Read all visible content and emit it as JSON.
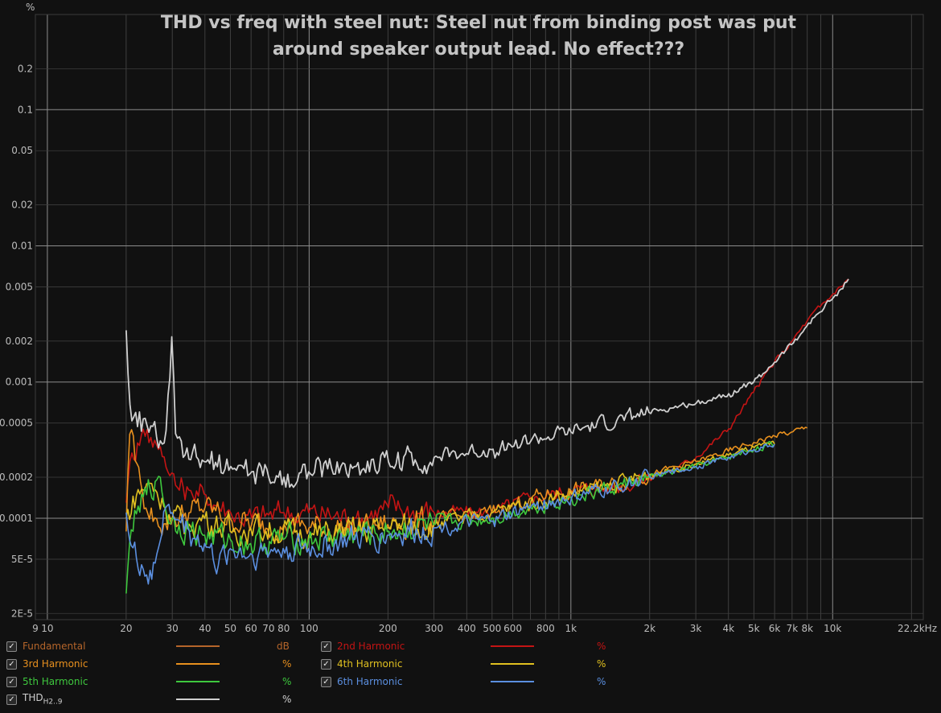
{
  "chart_data": {
    "type": "line",
    "title": "THD vs freq with steel nut: Steel nut from binding post was put around speaker output lead. No effect???",
    "title_lines": [
      "THD vs freq with steel nut: Steel nut from binding post was put",
      "around speaker output lead. No effect???"
    ],
    "yunit": "%",
    "xscale": "log",
    "yscale": "log",
    "xlim": [
      9,
      22200
    ],
    "ylim": [
      1.8e-05,
      0.5
    ],
    "grid": true,
    "x_ticks": [
      {
        "v": 9,
        "l": "9"
      },
      {
        "v": 10,
        "l": "10"
      },
      {
        "v": 20,
        "l": "20"
      },
      {
        "v": 30,
        "l": "30"
      },
      {
        "v": 40,
        "l": "40"
      },
      {
        "v": 50,
        "l": "50"
      },
      {
        "v": 60,
        "l": "60"
      },
      {
        "v": 70,
        "l": "70"
      },
      {
        "v": 80,
        "l": "80"
      },
      {
        "v": 100,
        "l": "100"
      },
      {
        "v": 200,
        "l": "200"
      },
      {
        "v": 300,
        "l": "300"
      },
      {
        "v": 400,
        "l": "400"
      },
      {
        "v": 500,
        "l": "500"
      },
      {
        "v": 600,
        "l": "600"
      },
      {
        "v": 800,
        "l": "800"
      },
      {
        "v": 1000,
        "l": "1k"
      },
      {
        "v": 2000,
        "l": "2k"
      },
      {
        "v": 3000,
        "l": "3k"
      },
      {
        "v": 4000,
        "l": "4k"
      },
      {
        "v": 5000,
        "l": "5k"
      },
      {
        "v": 6000,
        "l": "6k"
      },
      {
        "v": 7000,
        "l": "7k"
      },
      {
        "v": 8000,
        "l": "8k"
      },
      {
        "v": 10000,
        "l": "10k"
      },
      {
        "v": 22200,
        "l": "22.2kHz"
      }
    ],
    "y_ticks": [
      {
        "v": 0.2,
        "l": "0.2"
      },
      {
        "v": 0.1,
        "l": "0.1"
      },
      {
        "v": 0.05,
        "l": "0.05"
      },
      {
        "v": 0.02,
        "l": "0.02"
      },
      {
        "v": 0.01,
        "l": "0.01"
      },
      {
        "v": 0.005,
        "l": "0.005"
      },
      {
        "v": 0.002,
        "l": "0.002"
      },
      {
        "v": 0.001,
        "l": "0.001"
      },
      {
        "v": 0.0005,
        "l": "0.0005"
      },
      {
        "v": 0.0002,
        "l": "0.0002"
      },
      {
        "v": 0.0001,
        "l": "0.0001"
      },
      {
        "v": 5e-05,
        "l": "5E-5"
      },
      {
        "v": 2e-05,
        "l": "2E-5"
      }
    ],
    "series": [
      {
        "name": "Fundamental",
        "color": "#b5652a",
        "unit": "dB",
        "visible_on_plot": false,
        "x": [],
        "y": []
      },
      {
        "name": "2nd Harmonic",
        "color": "#c41414",
        "unit": "%",
        "x": [
          20,
          21,
          22,
          23,
          24,
          26,
          28,
          29.5,
          30,
          31,
          35,
          40,
          50,
          60,
          80,
          100,
          150,
          200,
          300,
          500,
          700,
          1000,
          1500,
          2000,
          2500,
          3000,
          4000,
          5000,
          6000,
          7000,
          8000,
          9000,
          10000,
          11500
        ],
        "y": [
          0.00013,
          0.0003,
          0.00035,
          0.00042,
          0.00045,
          0.00035,
          0.00028,
          0.0002,
          0.00022,
          0.00017,
          0.00016,
          0.00015,
          0.00011,
          0.0001,
          0.00011,
          0.00011,
          0.0001,
          0.00012,
          0.00011,
          0.00011,
          0.00014,
          0.00016,
          0.00017,
          0.0002,
          0.00023,
          0.00028,
          0.00045,
          0.00085,
          0.0014,
          0.002,
          0.0028,
          0.0036,
          0.0044,
          0.0057
        ]
      },
      {
        "name": "3rd Harmonic",
        "color": "#e8901e",
        "unit": "%",
        "x": [
          20,
          20.5,
          21,
          22,
          23,
          24,
          26,
          28,
          30,
          35,
          40,
          50,
          60,
          80,
          100,
          150,
          200,
          300,
          500,
          700,
          1000,
          1500,
          2000,
          3000,
          4000,
          5000,
          6000,
          7000,
          8000
        ],
        "y": [
          8e-05,
          0.0004,
          0.00045,
          0.00025,
          0.00016,
          0.00011,
          0.0001,
          9e-05,
          0.0001,
          0.00011,
          0.00012,
          0.0001,
          9e-05,
          9e-05,
          8.5e-05,
          8.5e-05,
          9e-05,
          9.5e-05,
          0.00011,
          0.00014,
          0.00016,
          0.00018,
          0.00021,
          0.00026,
          0.00031,
          0.00036,
          0.0004,
          0.00043,
          0.00046
        ]
      },
      {
        "name": "4th Harmonic",
        "color": "#e0c020",
        "unit": "%",
        "x": [
          20,
          22,
          24,
          26,
          28,
          30,
          35,
          40,
          50,
          60,
          80,
          100,
          150,
          200,
          300,
          500,
          700,
          1000,
          1500,
          2000,
          3000,
          4000,
          5000,
          6000
        ],
        "y": [
          0.0001,
          0.00015,
          0.00018,
          0.00016,
          0.00012,
          0.0001,
          9e-05,
          0.0001,
          8e-05,
          8.5e-05,
          8e-05,
          7.5e-05,
          8e-05,
          8.5e-05,
          9e-05,
          0.00011,
          0.00013,
          0.00015,
          0.00018,
          0.00021,
          0.00025,
          0.00029,
          0.00033,
          0.00035
        ]
      },
      {
        "name": "5th Harmonic",
        "color": "#3ec83e",
        "unit": "%",
        "x": [
          20,
          21,
          22,
          24,
          26,
          27,
          28,
          30,
          35,
          40,
          50,
          60,
          80,
          100,
          150,
          200,
          300,
          500,
          700,
          1000,
          1500,
          2000,
          3000,
          4000,
          5000,
          6000
        ],
        "y": [
          2.8e-05,
          9e-05,
          0.00011,
          0.00015,
          0.00019,
          0.0002,
          0.00012,
          0.0001,
          8e-05,
          7.5e-05,
          7e-05,
          6.5e-05,
          7e-05,
          7e-05,
          7.5e-05,
          8e-05,
          9e-05,
          0.0001,
          0.00012,
          0.00014,
          0.00017,
          0.0002,
          0.00024,
          0.00028,
          0.00032,
          0.00035
        ]
      },
      {
        "name": "6th Harmonic",
        "color": "#5b8fe0",
        "unit": "%",
        "x": [
          20,
          21,
          22,
          23,
          24,
          25,
          26,
          28,
          30,
          35,
          40,
          45,
          50,
          60,
          80,
          100,
          150,
          200,
          300,
          500,
          700,
          1000,
          1500,
          2000,
          3000,
          4000,
          5000,
          6000
        ],
        "y": [
          0.00011,
          6e-05,
          5e-05,
          4.5e-05,
          3.8e-05,
          3.5e-05,
          5e-05,
          0.00012,
          0.00011,
          8e-05,
          6.5e-05,
          4.5e-05,
          6e-05,
          5.5e-05,
          6e-05,
          6e-05,
          7e-05,
          7.5e-05,
          8.5e-05,
          9.5e-05,
          0.00012,
          0.00014,
          0.00017,
          0.0002,
          0.00024,
          0.00028,
          0.00032,
          0.00035
        ]
      },
      {
        "name": "THD",
        "name_sub": "H2..9",
        "color": "#cfcfcf",
        "unit": "%",
        "x": [
          20,
          20.5,
          21,
          22,
          24,
          26,
          27.5,
          28.5,
          29.5,
          30,
          30.5,
          31,
          33,
          35,
          40,
          50,
          60,
          70,
          80,
          100,
          150,
          200,
          300,
          500,
          700,
          1000,
          1500,
          2000,
          3000,
          4000,
          5000,
          6000,
          7000,
          8000,
          9000,
          10000,
          11500
        ],
        "y": [
          0.0024,
          0.0008,
          0.00052,
          0.00047,
          0.00048,
          0.0004,
          0.00035,
          0.00045,
          0.0012,
          0.0026,
          0.0008,
          0.00035,
          0.00028,
          0.00027,
          0.00026,
          0.00024,
          0.00022,
          0.0002,
          0.0002,
          0.00022,
          0.00024,
          0.00026,
          0.00028,
          0.00032,
          0.00037,
          0.00043,
          0.00052,
          0.0006,
          0.0007,
          0.00082,
          0.001,
          0.0014,
          0.0019,
          0.0026,
          0.0033,
          0.0041,
          0.0057
        ]
      }
    ]
  },
  "legend": {
    "items": [
      {
        "label": "Fundamental",
        "unit": "dB",
        "color": "#b5652a"
      },
      {
        "label": "2nd Harmonic",
        "unit": "%",
        "color": "#c41414"
      },
      {
        "label": "3rd Harmonic",
        "unit": "%",
        "color": "#e8901e"
      },
      {
        "label": "4th Harmonic",
        "unit": "%",
        "color": "#e0c020"
      },
      {
        "label": "5th Harmonic",
        "unit": "%",
        "color": "#3ec83e"
      },
      {
        "label": "6th Harmonic",
        "unit": "%",
        "color": "#5b8fe0"
      },
      {
        "label": "THD",
        "label_sub": "H2..9",
        "unit": "%",
        "color": "#cfcfcf"
      }
    ],
    "checkmark": "✓"
  }
}
